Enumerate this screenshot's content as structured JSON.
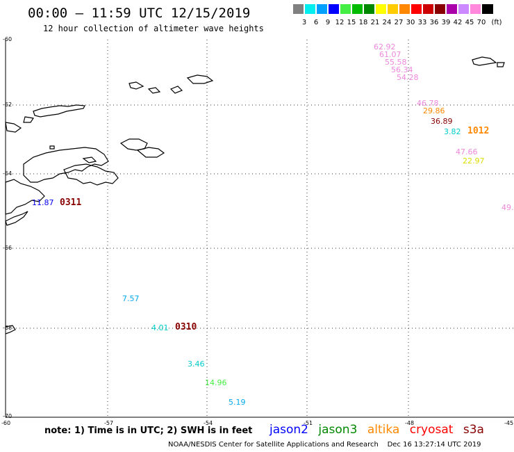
{
  "header": {
    "title": "00:00 – 11:59 UTC 12/15/2019",
    "subtitle": "12 hour collection of altimeter wave heights"
  },
  "legend": {
    "unit": "(ft)",
    "bins": [
      {
        "label": "3",
        "color": "#808080"
      },
      {
        "label": "6",
        "color": "#00eeee"
      },
      {
        "label": "9",
        "color": "#00a0ff"
      },
      {
        "label": "12",
        "color": "#0000ff"
      },
      {
        "label": "15",
        "color": "#44ee44"
      },
      {
        "label": "18",
        "color": "#00bb00"
      },
      {
        "label": "21",
        "color": "#008800"
      },
      {
        "label": "24",
        "color": "#ffff00"
      },
      {
        "label": "27",
        "color": "#ffcc00"
      },
      {
        "label": "30",
        "color": "#ff8800"
      },
      {
        "label": "33",
        "color": "#ff0000"
      },
      {
        "label": "36",
        "color": "#cc0000"
      },
      {
        "label": "39",
        "color": "#880000"
      },
      {
        "label": "42",
        "color": "#aa00aa"
      },
      {
        "label": "45",
        "color": "#cc88ff"
      },
      {
        "label": "70",
        "color": "#ff88dd"
      },
      {
        "label": "",
        "color": "#000000"
      }
    ]
  },
  "grid": {
    "lat_labels": [
      "-60",
      "-62",
      "-64",
      "-66",
      "-68",
      "-70"
    ],
    "lon_labels": [
      "-60",
      "-57",
      "-54",
      "-51",
      "-48",
      "-45"
    ]
  },
  "observations": [
    {
      "value": "62.92",
      "color": "#ee88dd"
    },
    {
      "value": "61.07",
      "color": "#ee88dd"
    },
    {
      "value": "55.58",
      "color": "#ee88dd"
    },
    {
      "value": "56.34",
      "color": "#ee88dd"
    },
    {
      "value": "54.28",
      "color": "#ee88dd"
    },
    {
      "value": "46.78",
      "color": "#ee88dd"
    },
    {
      "value": "29.86",
      "color": "#ff8800"
    },
    {
      "value": "36.89",
      "color": "#880000"
    },
    {
      "value": "3.82",
      "color": "#00cccc"
    },
    {
      "value": "47.66",
      "color": "#ee88dd"
    },
    {
      "value": "22.97",
      "color": "#dddd00"
    },
    {
      "value": "49.",
      "color": "#ee88dd"
    },
    {
      "value": "11.87",
      "color": "#0000ee"
    },
    {
      "value": "7.57",
      "color": "#00aaee"
    },
    {
      "value": "4.01",
      "color": "#00cccc"
    },
    {
      "value": "3.46",
      "color": "#00cccc"
    },
    {
      "value": "14.96",
      "color": "#44ee44"
    },
    {
      "value": "5.19",
      "color": "#00aaee"
    }
  ],
  "passes": [
    {
      "label": "1012",
      "color": "#ff8800"
    },
    {
      "label": "0311",
      "color": "#880000"
    },
    {
      "label": "0310",
      "color": "#880000"
    }
  ],
  "footer": {
    "note": "note: 1) Time is in UTC; 2) SWH is in feet",
    "satellites": [
      {
        "name": "jason2",
        "color": "#0000ff"
      },
      {
        "name": "jason3",
        "color": "#008800"
      },
      {
        "name": "altika",
        "color": "#ff8800"
      },
      {
        "name": "cryosat",
        "color": "#ff0000"
      },
      {
        "name": "s3a",
        "color": "#880000"
      }
    ],
    "credit": "NOAA/NESDIS Center for Satellite Applications and Research    Dec 16 13:27:14 UTC 2019"
  }
}
